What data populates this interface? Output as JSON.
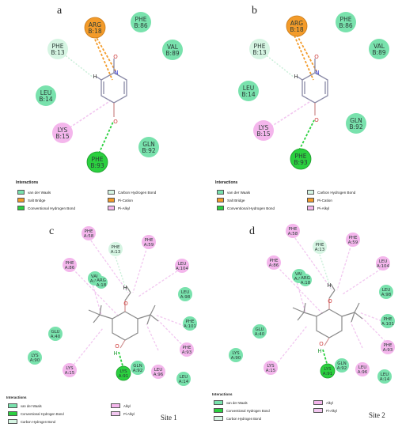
{
  "panels": {
    "a": {
      "letter": "a"
    },
    "b": {
      "letter": "b"
    },
    "c": {
      "letter": "c",
      "site": "Site 1"
    },
    "d": {
      "letter": "d",
      "site": "Site 2"
    }
  },
  "residues_top": {
    "arg": [
      "ARG",
      "B:18"
    ],
    "phe86": [
      "PHE",
      "B:86"
    ],
    "phe13": [
      "PHE",
      "B:13"
    ],
    "val89": [
      "VAL",
      "B:89"
    ],
    "leu14": [
      "LEU",
      "B:14"
    ],
    "lys15": [
      "LYS",
      "B:15"
    ],
    "gln92": [
      "GLN",
      "B:92"
    ],
    "phe93": [
      "PHE",
      "B:93"
    ]
  },
  "residues_bottom": {
    "phe58": [
      "PHE",
      "A:58"
    ],
    "phe13": [
      "PHE",
      "A:13"
    ],
    "phe59": [
      "PHE",
      "A:59"
    ],
    "phe86": [
      "PHE",
      "A:86"
    ],
    "leu104": [
      "LEU",
      "A:104"
    ],
    "val89": [
      "VAL",
      "A:89"
    ],
    "arg18": [
      "ARG",
      "A:18"
    ],
    "leu98": [
      "LEU",
      "A:98"
    ],
    "glu40": [
      "GLU",
      "A:40"
    ],
    "phe101": [
      "PHE",
      "A:101"
    ],
    "lys90": [
      "LYS",
      "A:90"
    ],
    "phe93": [
      "PHE",
      "A:93"
    ],
    "lys15": [
      "LYS",
      "A:15"
    ],
    "lys91": [
      "LYS",
      "A:91"
    ],
    "gln92": [
      "GLN",
      "A:92"
    ],
    "leu96": [
      "LEU",
      "A:96"
    ],
    "leu14": [
      "LEU",
      "A:14"
    ]
  },
  "atoms": {
    "o": "O",
    "n": "N",
    "h": "H"
  },
  "legend_top": {
    "title": "Interactions",
    "items": {
      "vdw": "van der Waals",
      "salt": "Salt Bridge",
      "hbond": "Conventional Hydrogen Bond",
      "chb": "Carbon Hydrogen Bond",
      "cation": "Pi-Cation",
      "alkyl": "Pi-Alkyl"
    }
  },
  "legend_bottom": {
    "title": "Interactions",
    "items": {
      "vdw": "van der Waals",
      "hbond": "Conventional Hydrogen Bond",
      "chb": "Carbon Hydrogen Bond",
      "alkyl": "Alkyl",
      "pialkyl": "Pi-Alkyl"
    }
  },
  "colors": {
    "vdw": "#79e2ad",
    "salt": "#f39b2a",
    "hbond": "#2bd03f",
    "chb": "#d6f5e3",
    "cation": "#f39b2a",
    "alkyl": "#f4b6ec",
    "pialkyl": "#f2c7f0"
  }
}
